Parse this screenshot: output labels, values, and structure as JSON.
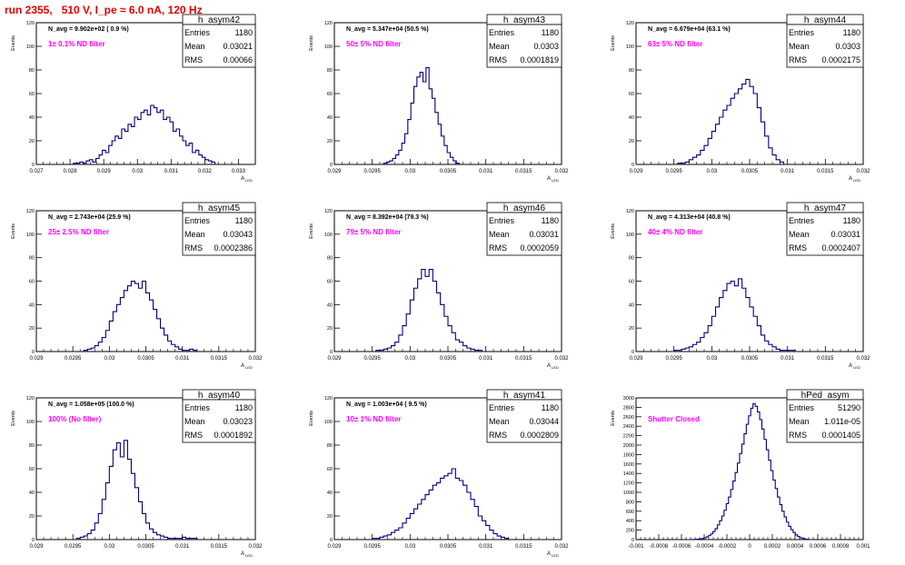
{
  "title": "run 2355,   510 V, I_pe ≈ 6.0 nA, 120 Hz",
  "colors": {
    "title": "#e00000",
    "annotation": "#ff00ff",
    "histogram": "#000080",
    "frame": "#000000"
  },
  "chart_data": [
    {
      "type": "histogram",
      "name": "h_asym42",
      "stats": {
        "Entries": "1180",
        "Mean": "0.03021",
        "RMS": "0.00066"
      },
      "navg": "N_avg = 9.902e+02 ( 0.9 %)",
      "annotation": "1± 0.1% ND filter",
      "ylabel": "Events",
      "xlabel": "A",
      "xlabel_sub": "LED",
      "xlim": [
        0.027,
        0.0335
      ],
      "ylim": [
        0,
        120
      ],
      "xticks": [
        "0.027",
        "0.028",
        "0.029",
        "0.03",
        "0.031",
        "0.032",
        "0.033"
      ],
      "xtick_values": [
        0.027,
        0.028,
        0.029,
        0.03,
        0.031,
        0.032,
        0.033
      ],
      "yticks": [
        "0",
        "20",
        "40",
        "60",
        "80",
        "100",
        "120"
      ],
      "ytick_values": [
        0,
        20,
        40,
        60,
        80,
        100,
        120
      ],
      "bins": {
        "x_start": 0.0281,
        "x_end": 0.0323,
        "values": [
          1,
          1,
          2,
          1,
          3,
          4,
          2,
          5,
          8,
          12,
          10,
          16,
          20,
          24,
          22,
          30,
          28,
          34,
          32,
          40,
          38,
          44,
          46,
          42,
          50,
          48,
          44,
          46,
          38,
          40,
          36,
          28,
          30,
          24,
          20,
          16,
          18,
          10,
          12,
          8,
          6,
          4,
          3,
          2
        ]
      }
    },
    {
      "type": "histogram",
      "name": "h_asym43",
      "stats": {
        "Entries": "1180",
        "Mean": "0.0303",
        "RMS": "0.0001819"
      },
      "navg": "N_avg = 5.347e+04 (50.5 %)",
      "annotation": "50± 5% ND filter",
      "ylabel": "Events",
      "xlabel": "A",
      "xlabel_sub": "LED",
      "xlim": [
        0.029,
        0.032
      ],
      "ylim": [
        0,
        120
      ],
      "xticks": [
        "0.029",
        "0.0295",
        "0.03",
        "0.0305",
        "0.031",
        "0.0315",
        "0.032"
      ],
      "xtick_values": [
        0.029,
        0.0295,
        0.03,
        0.0305,
        0.031,
        0.0315,
        0.032
      ],
      "yticks": [
        "0",
        "20",
        "40",
        "60",
        "80",
        "100",
        "120"
      ],
      "ytick_values": [
        0,
        20,
        40,
        60,
        80,
        100,
        120
      ],
      "bins": {
        "x_start": 0.02965,
        "x_end": 0.03065,
        "values": [
          1,
          2,
          3,
          5,
          8,
          12,
          18,
          26,
          38,
          52,
          66,
          74,
          78,
          70,
          82,
          64,
          56,
          44,
          34,
          24,
          16,
          10,
          6,
          3,
          1
        ]
      }
    },
    {
      "type": "histogram",
      "name": "h_asym44",
      "stats": {
        "Entries": "1180",
        "Mean": "0.0303",
        "RMS": "0.0002175"
      },
      "navg": "N_avg = 6.679e+04 (63.1 %)",
      "annotation": "63± 5% ND filter",
      "ylabel": "Events",
      "xlabel": "A",
      "xlabel_sub": "LED",
      "xlim": [
        0.029,
        0.032
      ],
      "ylim": [
        0,
        120
      ],
      "xticks": [
        "0.029",
        "0.0295",
        "0.03",
        "0.0305",
        "0.031",
        "0.0315",
        "0.032"
      ],
      "xtick_values": [
        0.029,
        0.0295,
        0.03,
        0.0305,
        0.031,
        0.0315,
        0.032
      ],
      "yticks": [
        "0",
        "20",
        "40",
        "60",
        "80",
        "100",
        "120"
      ],
      "ytick_values": [
        0,
        20,
        40,
        60,
        80,
        100,
        120
      ],
      "bins": {
        "x_start": 0.02955,
        "x_end": 0.03095,
        "values": [
          1,
          1,
          2,
          4,
          6,
          8,
          12,
          16,
          22,
          28,
          34,
          40,
          46,
          50,
          56,
          60,
          64,
          68,
          72,
          66,
          60,
          48,
          36,
          24,
          14,
          8,
          4,
          2
        ]
      }
    },
    {
      "type": "histogram",
      "name": "h_asym45",
      "stats": {
        "Entries": "1180",
        "Mean": "0.03043",
        "RMS": "0.0002386"
      },
      "navg": "N_avg = 2.743e+04 (25.9 %)",
      "annotation": "25± 2.5% ND filter",
      "ylabel": "Events",
      "xlabel": "A",
      "xlabel_sub": "LED",
      "xlim": [
        0.029,
        0.032
      ],
      "ylim": [
        0,
        120
      ],
      "xticks": [
        "0.029",
        "0.0295",
        "0.03",
        "0.0305",
        "0.031",
        "0.0315",
        "0.032"
      ],
      "xtick_values": [
        0.029,
        0.0295,
        0.03,
        0.0305,
        0.031,
        0.0315,
        0.032
      ],
      "yticks": [
        "0",
        "20",
        "40",
        "60",
        "80",
        "100",
        "120"
      ],
      "ytick_values": [
        0,
        20,
        40,
        60,
        80,
        100,
        120
      ],
      "bins": {
        "x_start": 0.02965,
        "x_end": 0.0312,
        "values": [
          1,
          2,
          3,
          5,
          8,
          12,
          18,
          26,
          34,
          40,
          46,
          52,
          56,
          60,
          58,
          54,
          60,
          50,
          44,
          36,
          28,
          20,
          14,
          9,
          6,
          4,
          2,
          1,
          1,
          2,
          1
        ]
      }
    },
    {
      "type": "histogram",
      "name": "h_asym46",
      "stats": {
        "Entries": "1180",
        "Mean": "0.03031",
        "RMS": "0.0002059"
      },
      "navg": "N_avg = 8.392e+04 (79.3 %)",
      "annotation": "79± 5% ND filter",
      "ylabel": "Events",
      "xlabel": "A",
      "xlabel_sub": "LED",
      "xlim": [
        0.029,
        0.032
      ],
      "ylim": [
        0,
        120
      ],
      "xticks": [
        "0.029",
        "0.0295",
        "0.03",
        "0.0305",
        "0.031",
        "0.0315",
        "0.032"
      ],
      "xtick_values": [
        0.029,
        0.0295,
        0.03,
        0.0305,
        0.031,
        0.0315,
        0.032
      ],
      "yticks": [
        "0",
        "20",
        "40",
        "60",
        "80",
        "100",
        "120"
      ],
      "ytick_values": [
        0,
        20,
        40,
        60,
        80,
        100,
        120
      ],
      "bins": {
        "x_start": 0.02955,
        "x_end": 0.03095,
        "values": [
          1,
          1,
          2,
          3,
          5,
          8,
          14,
          22,
          32,
          44,
          54,
          62,
          70,
          64,
          70,
          60,
          50,
          40,
          30,
          22,
          16,
          10,
          8,
          5,
          3,
          2,
          1,
          1
        ]
      }
    },
    {
      "type": "histogram",
      "name": "h_asym47",
      "stats": {
        "Entries": "1180",
        "Mean": "0.03031",
        "RMS": "0.0002407"
      },
      "navg": "N_avg = 4.313e+04 (40.8 %)",
      "annotation": "40± 4% ND filter",
      "ylabel": "Events",
      "xlabel": "A",
      "xlabel_sub": "LED",
      "xlim": [
        0.029,
        0.032
      ],
      "ylim": [
        0,
        120
      ],
      "xticks": [
        "0.029",
        "0.0295",
        "0.03",
        "0.0305",
        "0.031",
        "0.0315",
        "0.032"
      ],
      "xtick_values": [
        0.029,
        0.0295,
        0.03,
        0.0305,
        0.031,
        0.0315,
        0.032
      ],
      "yticks": [
        "0",
        "20",
        "40",
        "60",
        "80",
        "100",
        "120"
      ],
      "ytick_values": [
        0,
        20,
        40,
        60,
        80,
        100,
        120
      ],
      "bins": {
        "x_start": 0.0295,
        "x_end": 0.0311,
        "values": [
          1,
          1,
          2,
          3,
          4,
          6,
          8,
          12,
          16,
          22,
          30,
          38,
          46,
          52,
          58,
          60,
          56,
          62,
          54,
          46,
          38,
          30,
          22,
          14,
          9,
          6,
          4,
          2,
          1,
          1,
          1,
          1
        ]
      }
    },
    {
      "type": "histogram",
      "name": "h_asym40",
      "stats": {
        "Entries": "1180",
        "Mean": "0.03023",
        "RMS": "0.0001892"
      },
      "navg": "N_avg = 1.058e+05 (100.0 %)",
      "annotation": "100% (No filter)",
      "ylabel": "Events",
      "xlabel": "A",
      "xlabel_sub": "LED",
      "xlim": [
        0.029,
        0.032
      ],
      "ylim": [
        0,
        120
      ],
      "xticks": [
        "0.029",
        "0.0295",
        "0.03",
        "0.0305",
        "0.031",
        "0.0315",
        "0.032"
      ],
      "xtick_values": [
        0.029,
        0.0295,
        0.03,
        0.0305,
        0.031,
        0.0315,
        0.032
      ],
      "yticks": [
        "0",
        "20",
        "40",
        "60",
        "80",
        "100",
        "120"
      ],
      "ytick_values": [
        0,
        20,
        40,
        60,
        80,
        100,
        120
      ],
      "bins": {
        "x_start": 0.02955,
        "x_end": 0.0312,
        "values": [
          1,
          2,
          3,
          5,
          8,
          14,
          22,
          34,
          48,
          62,
          76,
          82,
          70,
          84,
          68,
          56,
          44,
          32,
          22,
          14,
          9,
          6,
          4,
          3,
          2,
          1,
          1,
          1,
          1,
          2,
          1,
          1,
          1
        ]
      }
    },
    {
      "type": "histogram",
      "name": "h_asym41",
      "stats": {
        "Entries": "1180",
        "Mean": "0.03044",
        "RMS": "0.0002809"
      },
      "navg": "N_avg = 1.003e+04 ( 9.5 %)",
      "annotation": "10± 1% ND filter",
      "ylabel": "Events",
      "xlabel": "A",
      "xlabel_sub": "LED",
      "xlim": [
        0.029,
        0.032
      ],
      "ylim": [
        0,
        120
      ],
      "xticks": [
        "0.029",
        "0.0295",
        "0.03",
        "0.0305",
        "0.031",
        "0.0315",
        "0.032"
      ],
      "xtick_values": [
        0.029,
        0.0295,
        0.03,
        0.0305,
        0.031,
        0.0315,
        0.032
      ],
      "yticks": [
        "0",
        "20",
        "40",
        "60",
        "80",
        "100",
        "120"
      ],
      "ytick_values": [
        0,
        20,
        40,
        60,
        80,
        100,
        120
      ],
      "bins": {
        "x_start": 0.0295,
        "x_end": 0.0313,
        "values": [
          1,
          1,
          2,
          3,
          4,
          6,
          8,
          10,
          14,
          18,
          22,
          26,
          30,
          34,
          38,
          42,
          46,
          48,
          52,
          54,
          56,
          60,
          52,
          50,
          46,
          40,
          34,
          28,
          20,
          16,
          12,
          8,
          5,
          3,
          2,
          1
        ]
      }
    },
    {
      "type": "histogram",
      "name": "hPed_asym",
      "stats": {
        "Entries": "51290",
        "Mean": "1.011e-05",
        "RMS": "0.0001405"
      },
      "navg": "",
      "annotation": "Shutter Closed",
      "ylabel": "Events",
      "xlabel": "",
      "xlabel_sub": "",
      "xlim": [
        -0.001,
        0.001
      ],
      "ylim": [
        0,
        3000
      ],
      "xticks": [
        "-0.001",
        "-0.0008",
        "-0.0006",
        "-0.0004",
        "-0.0002",
        "0",
        "0.0002",
        "0.0004",
        "0.0006",
        "0.0008",
        "0.001"
      ],
      "xtick_values": [
        -0.001,
        -0.0008,
        -0.0006,
        -0.0004,
        -0.0002,
        0,
        0.0002,
        0.0004,
        0.0006,
        0.0008,
        0.001
      ],
      "yticks": [
        "0",
        "200",
        "400",
        "600",
        "800",
        "1000",
        "1200",
        "1400",
        "1600",
        "1800",
        "2000",
        "2200",
        "2400",
        "2600",
        "2800",
        "3000"
      ],
      "ytick_values": [
        0,
        200,
        400,
        600,
        800,
        1000,
        1200,
        1400,
        1600,
        1800,
        2000,
        2200,
        2400,
        2600,
        2800,
        3000
      ],
      "bins": {
        "x_start": -0.0005,
        "x_end": 0.00052,
        "values": [
          2,
          4,
          8,
          14,
          22,
          36,
          56,
          84,
          120,
          170,
          230,
          310,
          400,
          500,
          620,
          760,
          900,
          1060,
          1240,
          1420,
          1620,
          1820,
          2020,
          2240,
          2440,
          2620,
          2780,
          2880,
          2820,
          2700,
          2540,
          2340,
          2120,
          1900,
          1680,
          1460,
          1260,
          1080,
          900,
          740,
          600,
          480,
          370,
          280,
          210,
          150,
          100,
          64,
          40,
          24,
          12,
          6
        ]
      }
    }
  ]
}
